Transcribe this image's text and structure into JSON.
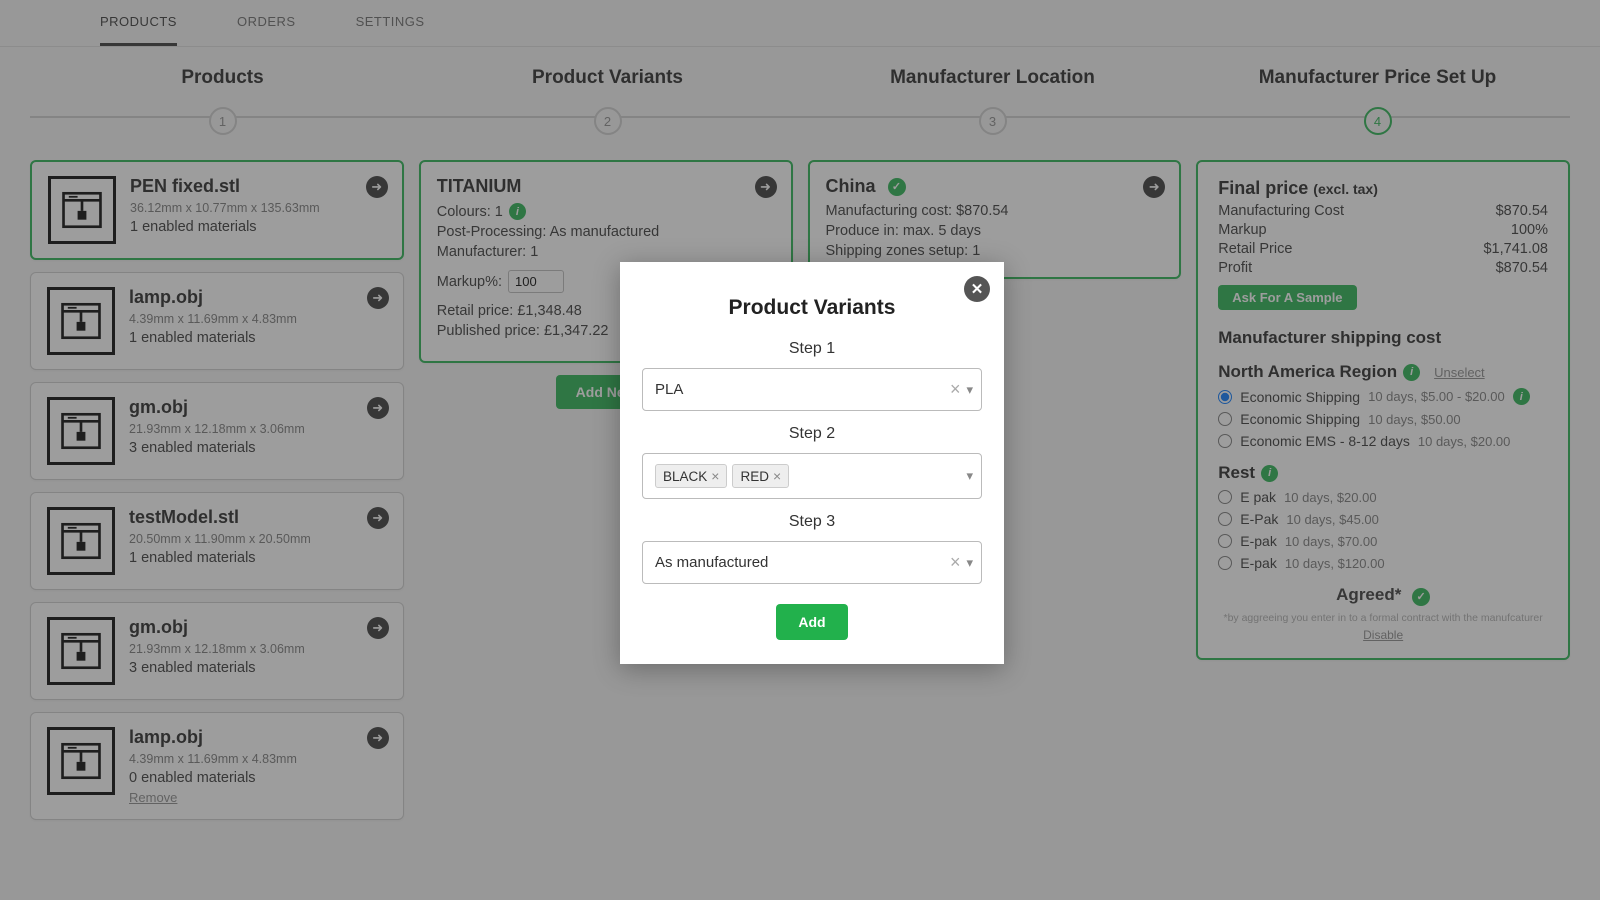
{
  "colors": {
    "accent": "#22b14c",
    "card_border": "#cccccc",
    "text": "#333333",
    "bg": "#f5f5f5"
  },
  "tabs": {
    "items": [
      "PRODUCTS",
      "ORDERS",
      "SETTINGS"
    ],
    "active": 0
  },
  "wizard": {
    "steps": [
      {
        "title": "Products",
        "num": "1"
      },
      {
        "title": "Product Variants",
        "num": "2"
      },
      {
        "title": "Manufacturer Location",
        "num": "3"
      },
      {
        "title": "Manufacturer Price Set Up",
        "num": "4"
      }
    ],
    "active": 3
  },
  "products": [
    {
      "name": "PEN fixed.stl",
      "dims": "36.12mm x 10.77mm x 135.63mm",
      "materials": "1 enabled materials",
      "selected": true
    },
    {
      "name": "lamp.obj",
      "dims": "4.39mm x 11.69mm x 4.83mm",
      "materials": "1 enabled materials"
    },
    {
      "name": "gm.obj",
      "dims": "21.93mm x 12.18mm x 3.06mm",
      "materials": "3 enabled materials"
    },
    {
      "name": "testModel.stl",
      "dims": "20.50mm x 11.90mm x 20.50mm",
      "materials": "1 enabled materials"
    },
    {
      "name": "gm.obj",
      "dims": "21.93mm x 12.18mm x 3.06mm",
      "materials": "3 enabled materials"
    },
    {
      "name": "lamp.obj",
      "dims": "4.39mm x 11.69mm x 4.83mm",
      "materials": "0 enabled materials",
      "remove": "Remove"
    }
  ],
  "variant": {
    "title": "TITANIUM",
    "colours_label": "Colours: 1",
    "postproc": "Post-Processing: As manufactured",
    "manufacturer": "Manufacturer: 1",
    "markup_label": "Markup%:",
    "markup_value": "100",
    "retail": "Retail price: £1,348.48",
    "published": "Published price: £1,347.22",
    "add_new": "Add New"
  },
  "location": {
    "title": "China",
    "cost": "Manufacturing cost: $870.54",
    "produce": "Produce in: max. 5 days",
    "zones": "Shipping zones setup: 1"
  },
  "pricing": {
    "title": "Final price",
    "title_suffix": "(excl. tax)",
    "rows": [
      {
        "label": "Manufacturing Cost",
        "value": "$870.54"
      },
      {
        "label": "Markup",
        "value": "100%"
      },
      {
        "label": "Retail Price",
        "value": "$1,741.08"
      },
      {
        "label": "Profit",
        "value": "$870.54"
      }
    ],
    "sample_btn": "Ask For A Sample",
    "ship_title": "Manufacturer shipping cost",
    "region1": {
      "name": "North America Region",
      "unselect": "Unselect",
      "options": [
        {
          "label": "Economic Shipping",
          "detail": "10 days, $5.00 - $20.00",
          "checked": true,
          "info": true
        },
        {
          "label": "Economic Shipping",
          "detail": "10 days, $50.00"
        },
        {
          "label": "Economic EMS - 8-12 days",
          "detail": "10 days, $20.00"
        }
      ]
    },
    "region2": {
      "name": "Rest",
      "options": [
        {
          "label": "E pak",
          "detail": "10 days, $20.00"
        },
        {
          "label": "E-Pak",
          "detail": "10 days, $45.00"
        },
        {
          "label": "E-pak",
          "detail": "10 days, $70.00"
        },
        {
          "label": "E-pak",
          "detail": "10 days, $120.00"
        }
      ]
    },
    "agreed": "Agreed*",
    "fineprint": "*by aggreeing you enter in to a formal contract with the manufcaturer",
    "disable": "Disable"
  },
  "modal": {
    "title": "Product Variants",
    "step1_label": "Step 1",
    "step1_value": "PLA",
    "step2_label": "Step 2",
    "step2_tags": [
      "BLACK",
      "RED"
    ],
    "step3_label": "Step 3",
    "step3_value": "As manufactured",
    "add_btn": "Add"
  }
}
